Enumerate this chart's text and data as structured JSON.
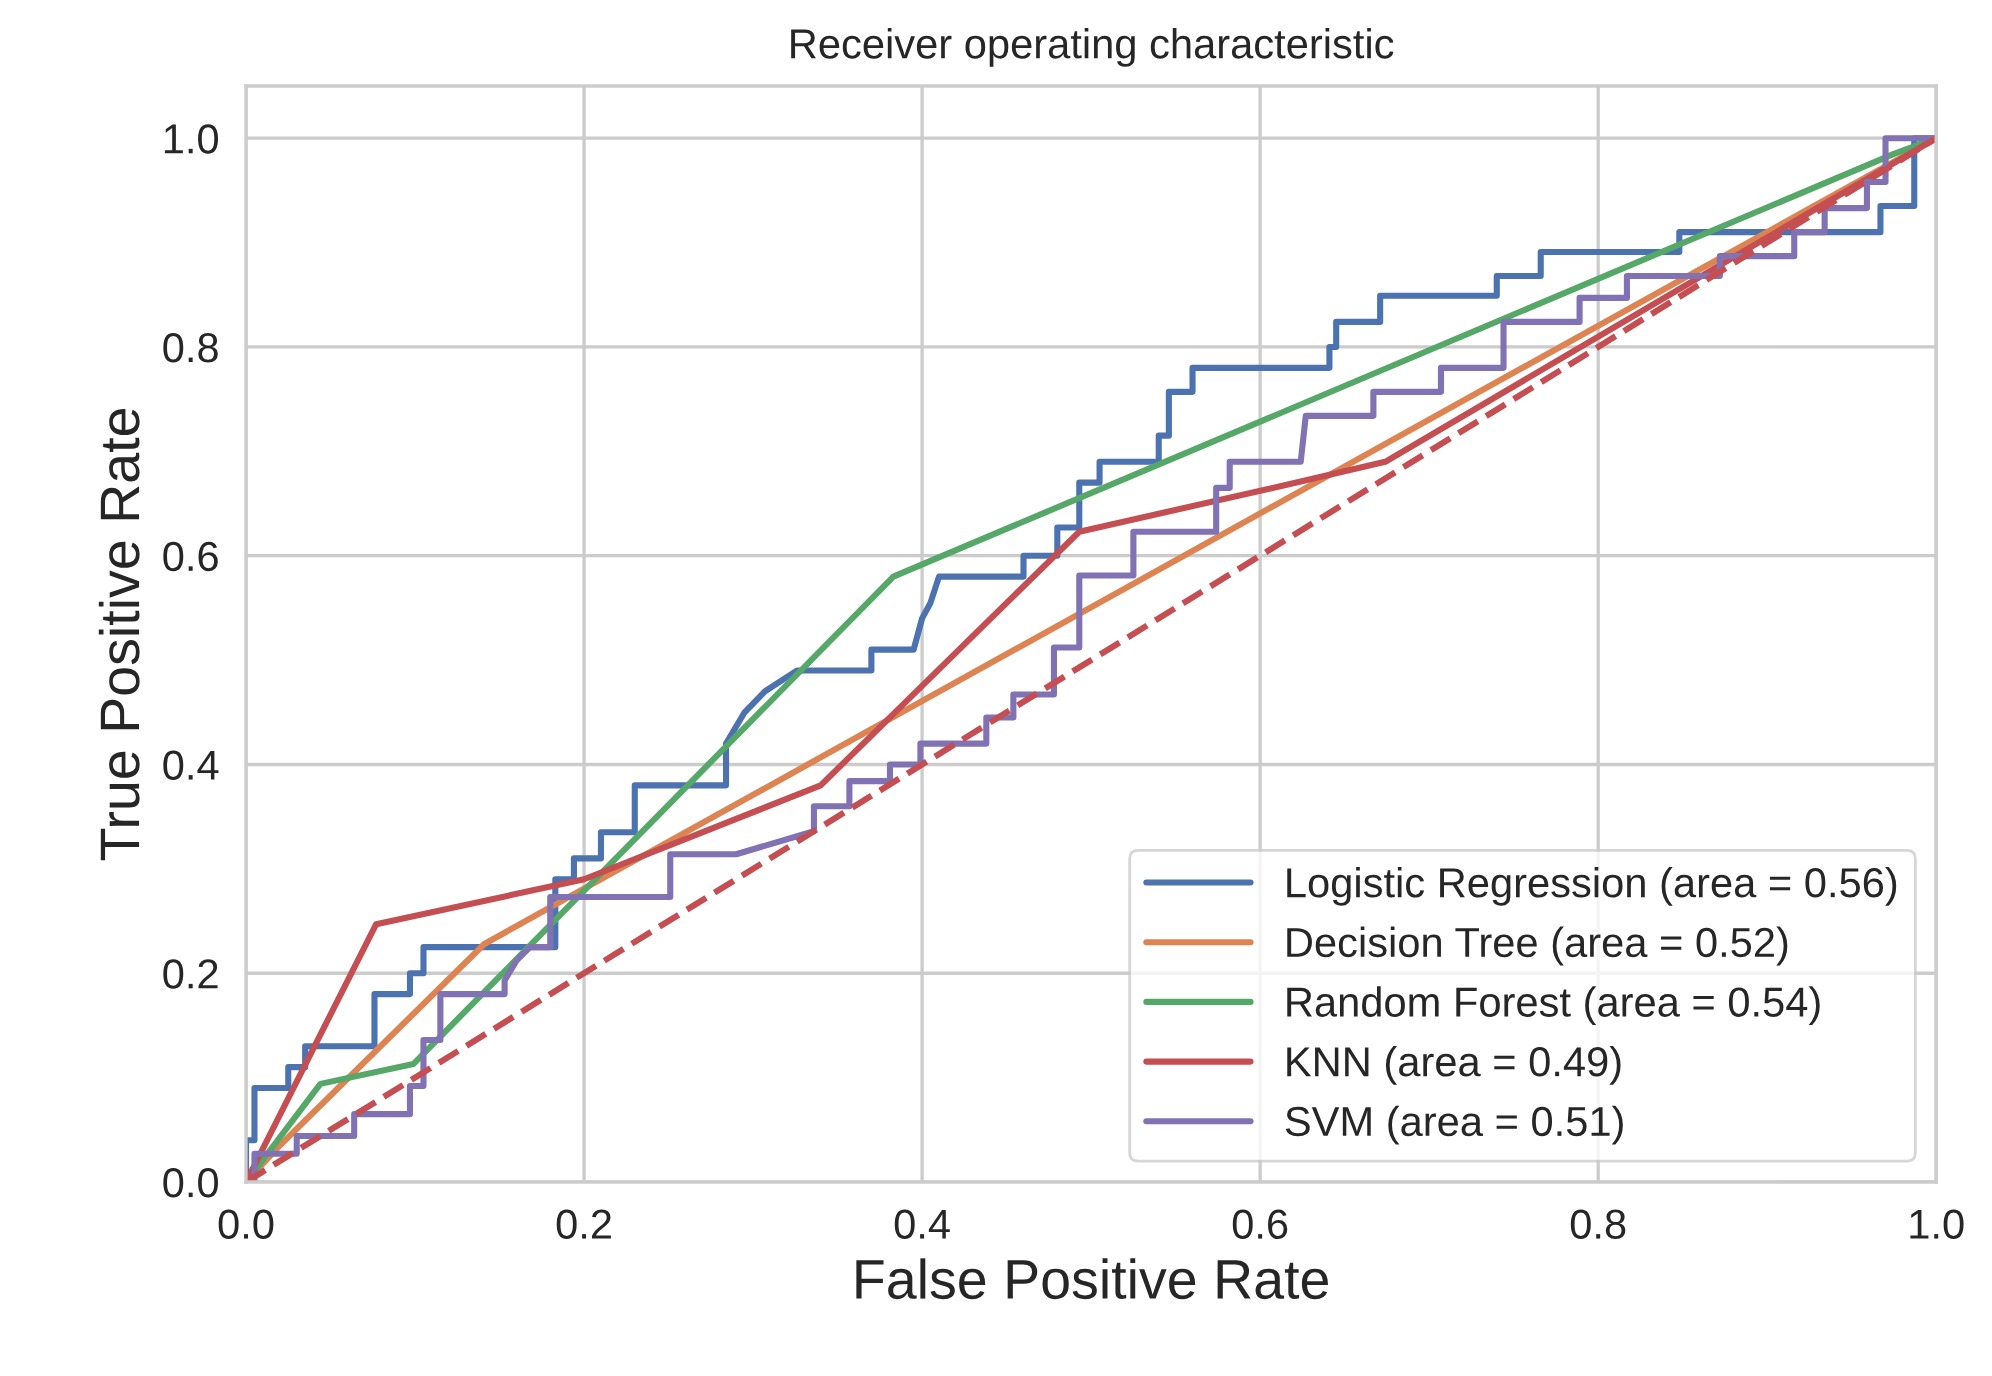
{
  "chart_data": {
    "type": "line",
    "title": "Receiver operating characteristic",
    "xlabel": "False Positive Rate",
    "ylabel": "True Positive Rate",
    "xlim": [
      0,
      1
    ],
    "ylim": [
      0,
      1.05
    ],
    "xticks": [
      {
        "value": 0,
        "label": "0.0"
      },
      {
        "value": 0.2,
        "label": "0.2"
      },
      {
        "value": 0.4,
        "label": "0.4"
      },
      {
        "value": 0.6,
        "label": "0.6"
      },
      {
        "value": 0.8,
        "label": "0.8"
      },
      {
        "value": 1,
        "label": "1.0"
      }
    ],
    "yticks": [
      {
        "value": 0,
        "label": "0.0"
      },
      {
        "value": 0.2,
        "label": "0.2"
      },
      {
        "value": 0.4,
        "label": "0.4"
      },
      {
        "value": 0.6,
        "label": "0.6"
      },
      {
        "value": 0.8,
        "label": "0.8"
      },
      {
        "value": 1,
        "label": "1.0"
      }
    ],
    "grid": true,
    "legend": "bottom right",
    "series": [
      {
        "name": "Logistic Regression (area = 0.56)",
        "color": "#4c72b0",
        "x": [
          0,
          0,
          0.005,
          0.005,
          0.025,
          0.025,
          0.035,
          0.035,
          0.076,
          0.076,
          0.097,
          0.097,
          0.105,
          0.105,
          0.183,
          0.183,
          0.194,
          0.194,
          0.21,
          0.21,
          0.23,
          0.23,
          0.284,
          0.284,
          0.295,
          0.307,
          0.326,
          0.37,
          0.37,
          0.395,
          0.4,
          0.405,
          0.41,
          0.46,
          0.46,
          0.48,
          0.48,
          0.493,
          0.493,
          0.505,
          0.505,
          0.54,
          0.54,
          0.546,
          0.546,
          0.56,
          0.56,
          0.641,
          0.641,
          0.645,
          0.645,
          0.671,
          0.671,
          0.74,
          0.74,
          0.766,
          0.766,
          0.848,
          0.848,
          0.967,
          0.967,
          0.987,
          0.987,
          1.0
        ],
        "values": [
          0,
          0.04,
          0.04,
          0.09,
          0.09,
          0.11,
          0.11,
          0.13,
          0.13,
          0.18,
          0.18,
          0.2,
          0.2,
          0.225,
          0.225,
          0.29,
          0.29,
          0.31,
          0.31,
          0.335,
          0.335,
          0.38,
          0.38,
          0.42,
          0.45,
          0.47,
          0.49,
          0.49,
          0.51,
          0.51,
          0.54,
          0.555,
          0.58,
          0.58,
          0.6,
          0.6,
          0.627,
          0.627,
          0.67,
          0.67,
          0.69,
          0.69,
          0.715,
          0.715,
          0.757,
          0.757,
          0.78,
          0.78,
          0.8,
          0.8,
          0.824,
          0.824,
          0.849,
          0.849,
          0.868,
          0.868,
          0.891,
          0.891,
          0.91,
          0.91,
          0.935,
          0.935,
          1.0,
          1.0
        ]
      },
      {
        "name": "Decision Tree (area = 0.52)",
        "color": "#dd8452",
        "x": [
          0,
          0.02,
          0.141,
          1
        ],
        "values": [
          0,
          0.035,
          0.228,
          1
        ]
      },
      {
        "name": "Random Forest (area = 0.54)",
        "color": "#55a868",
        "x": [
          0,
          0.044,
          0.099,
          0.383,
          0.975,
          1
        ],
        "values": [
          0,
          0.094,
          0.113,
          0.58,
          0.985,
          1
        ]
      },
      {
        "name": "KNN (area = 0.49)",
        "color": "#c44e52",
        "x": [
          0,
          0.077,
          0.2,
          0.34,
          0.493,
          0.624,
          0.674,
          1
        ],
        "values": [
          0,
          0.247,
          0.29,
          0.38,
          0.623,
          0.671,
          0.69,
          1
        ]
      },
      {
        "name": "SVM (area = 0.51)",
        "color": "#8172b3",
        "x": [
          0,
          0.005,
          0.005,
          0.03,
          0.03,
          0.064,
          0.064,
          0.097,
          0.097,
          0.105,
          0.105,
          0.115,
          0.115,
          0.153,
          0.153,
          0.16,
          0.168,
          0.18,
          0.18,
          0.209,
          0.251,
          0.251,
          0.29,
          0.336,
          0.336,
          0.357,
          0.357,
          0.381,
          0.381,
          0.399,
          0.399,
          0.438,
          0.438,
          0.454,
          0.454,
          0.478,
          0.478,
          0.493,
          0.493,
          0.525,
          0.525,
          0.574,
          0.574,
          0.582,
          0.582,
          0.624,
          0.627,
          0.667,
          0.667,
          0.707,
          0.707,
          0.744,
          0.744,
          0.789,
          0.789,
          0.817,
          0.817,
          0.872,
          0.872,
          0.916,
          0.916,
          0.934,
          0.934,
          0.959,
          0.959,
          0.97,
          0.97,
          1.0
        ],
        "values": [
          0,
          0,
          0.027,
          0.027,
          0.044,
          0.044,
          0.065,
          0.065,
          0.092,
          0.092,
          0.136,
          0.136,
          0.18,
          0.18,
          0.193,
          0.212,
          0.225,
          0.225,
          0.273,
          0.273,
          0.273,
          0.314,
          0.314,
          0.336,
          0.36,
          0.36,
          0.384,
          0.384,
          0.4,
          0.4,
          0.42,
          0.42,
          0.445,
          0.445,
          0.467,
          0.467,
          0.512,
          0.512,
          0.581,
          0.581,
          0.623,
          0.623,
          0.665,
          0.665,
          0.69,
          0.69,
          0.734,
          0.734,
          0.757,
          0.757,
          0.78,
          0.78,
          0.824,
          0.824,
          0.847,
          0.847,
          0.868,
          0.868,
          0.887,
          0.887,
          0.91,
          0.91,
          0.933,
          0.933,
          0.958,
          0.958,
          1.0,
          1.0
        ]
      },
      {
        "color": "#c44e52",
        "line_style": "dashed",
        "x": [
          0,
          1
        ],
        "values": [
          0,
          1
        ]
      }
    ]
  }
}
